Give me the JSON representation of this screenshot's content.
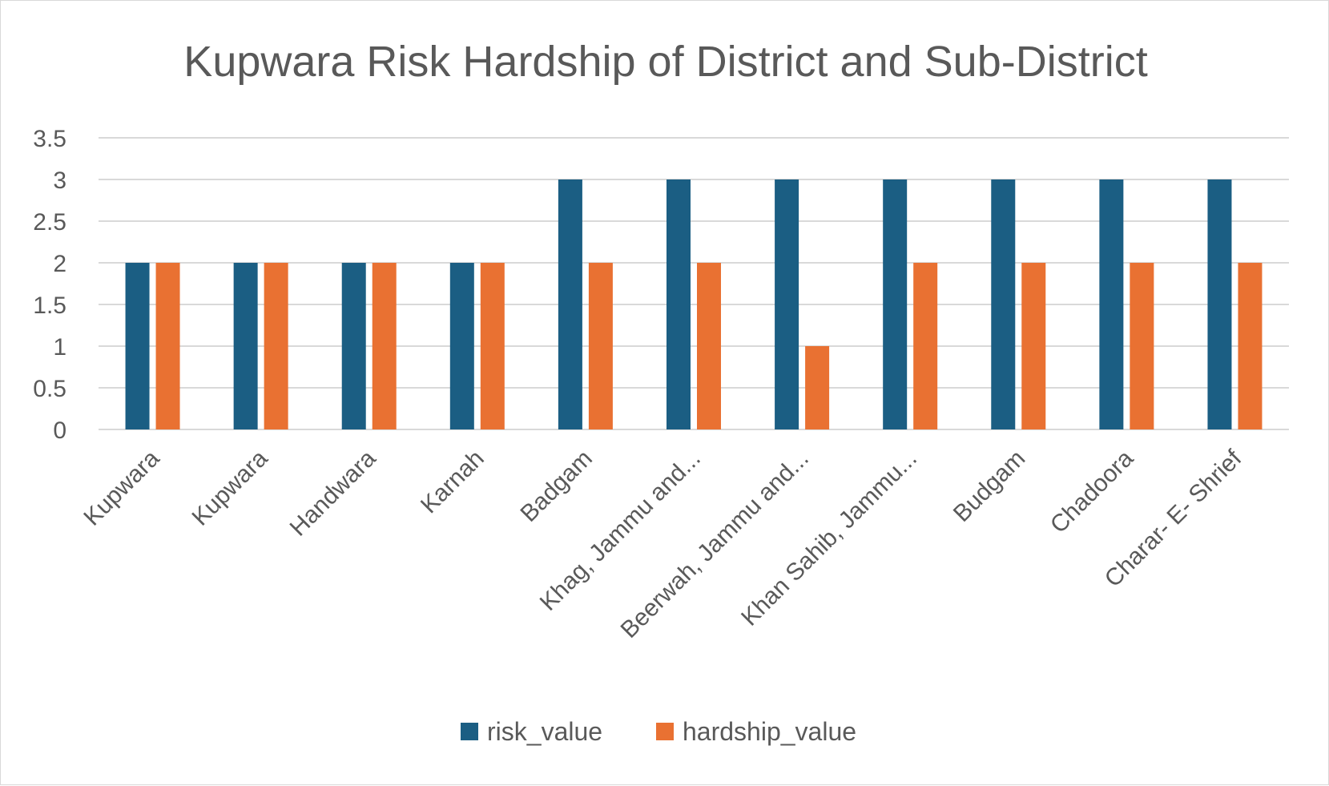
{
  "chart_data": {
    "type": "bar",
    "title": "Kupwara Risk Hardship of District and Sub-District",
    "xlabel": "",
    "ylabel": "",
    "ylim": [
      0,
      3.5
    ],
    "yticks": [
      "0",
      "0.5",
      "1",
      "1.5",
      "2",
      "2.5",
      "3",
      "3.5"
    ],
    "grid": true,
    "legend_position": "bottom",
    "categories": [
      "Kupwara",
      "Kupwara",
      "Handwara",
      "Karnah",
      "Badgam",
      "Khag, Jammu and...",
      "Beerwah, Jammu and...",
      "Khan Sahib, Jammu...",
      "Budgam",
      "Chadoora",
      "Charar- E- Shrief"
    ],
    "series": [
      {
        "name": "risk_value",
        "color": "#1b5e83",
        "values": [
          2,
          2,
          2,
          2,
          3,
          3,
          3,
          3,
          3,
          3,
          3
        ]
      },
      {
        "name": "hardship_value",
        "color": "#e97132",
        "values": [
          2,
          2,
          2,
          2,
          2,
          2,
          1,
          2,
          2,
          2,
          2
        ]
      }
    ]
  }
}
